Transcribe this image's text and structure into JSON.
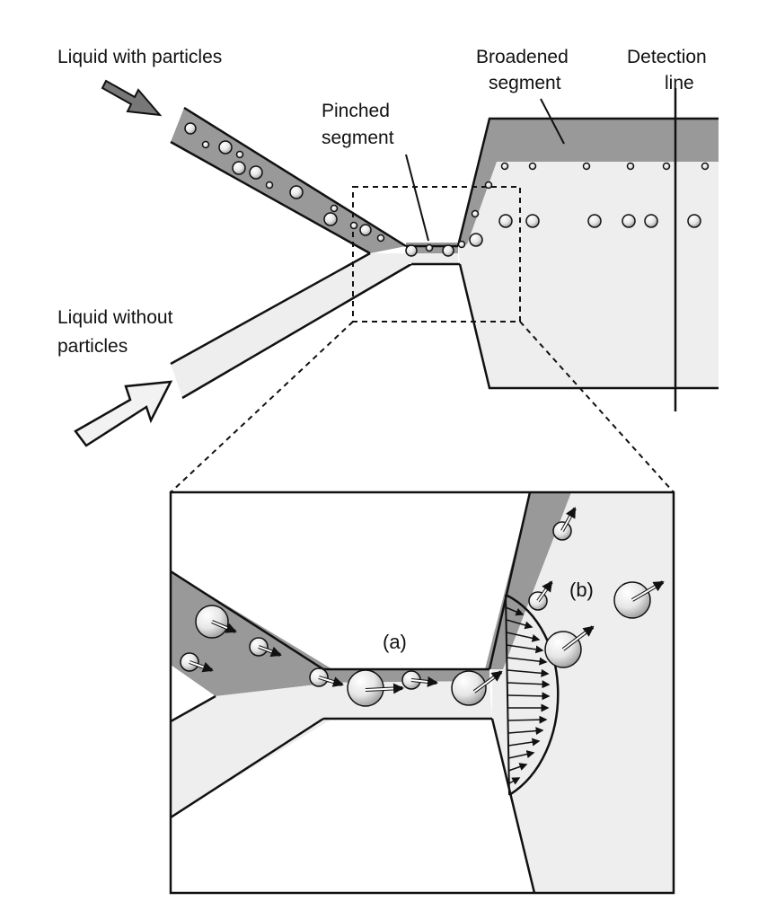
{
  "labels": {
    "liquid_with_particles": "Liquid with particles",
    "broadened_line1": "Broadened",
    "broadened_line2": "segment",
    "detection_line1": "Detection",
    "detection_line2": "line",
    "pinched_line1": "Pinched",
    "pinched_line2": "segment",
    "liquid_without_line1": "Liquid without",
    "liquid_without_line2": "particles",
    "region_a": "(a)",
    "region_b": "(b)"
  },
  "colors": {
    "particle_stream": "#999999",
    "clear_stream": "#eeeeee",
    "outline": "#111111",
    "particle_highlight": "#ffffff",
    "particle_shade": "#b8b8b8"
  }
}
